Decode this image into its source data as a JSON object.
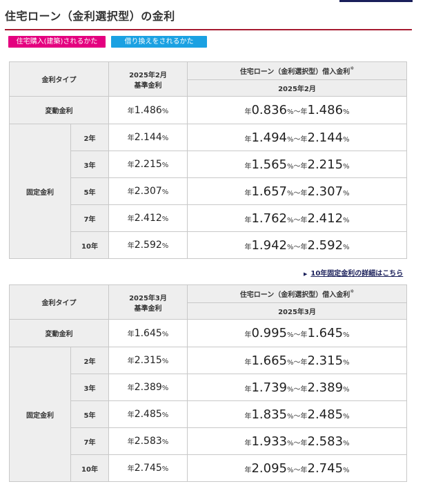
{
  "page_title": "住宅ローン（金利選択型）の金利",
  "tabs": [
    {
      "label": "住宅購入(建築)されるかた",
      "color": "#e4007f"
    },
    {
      "label": "借り換えをされるかた",
      "color": "#1ba1e2"
    }
  ],
  "table1": {
    "header": {
      "type": "金利タイプ",
      "base_period": "2025年2月",
      "base_label": "基準金利",
      "loan_label": "住宅ローン（金利選択型）借入金利",
      "note_mark": "※",
      "loan_period": "2025年2月"
    },
    "variable": {
      "label": "変動金利",
      "base": "1.486",
      "low": "0.836",
      "high": "1.486"
    },
    "fixed_label": "固定金利",
    "fixed": [
      {
        "term": "2年",
        "base": "2.144",
        "low": "1.494",
        "high": "2.144"
      },
      {
        "term": "3年",
        "base": "2.215",
        "low": "1.565",
        "high": "2.215"
      },
      {
        "term": "5年",
        "base": "2.307",
        "low": "1.657",
        "high": "2.307"
      },
      {
        "term": "7年",
        "base": "2.412",
        "low": "1.762",
        "high": "2.412"
      },
      {
        "term": "10年",
        "base": "2.592",
        "low": "1.942",
        "high": "2.592"
      }
    ]
  },
  "detail_link": "10年固定金利の詳細はこちら",
  "table2": {
    "header": {
      "type": "金利タイプ",
      "base_period": "2025年3月",
      "base_label": "基準金利",
      "loan_label": "住宅ローン（金利選択型）借入金利",
      "note_mark": "※",
      "loan_period": "2025年3月"
    },
    "variable": {
      "label": "変動金利",
      "base": "1.645",
      "low": "0.995",
      "high": "1.645"
    },
    "fixed_label": "固定金利",
    "fixed": [
      {
        "term": "2年",
        "base": "2.315",
        "low": "1.665",
        "high": "2.315"
      },
      {
        "term": "3年",
        "base": "2.389",
        "low": "1.739",
        "high": "2.389"
      },
      {
        "term": "5年",
        "base": "2.485",
        "low": "1.835",
        "high": "2.485"
      },
      {
        "term": "7年",
        "base": "2.583",
        "low": "1.933",
        "high": "2.583"
      },
      {
        "term": "10年",
        "base": "2.745",
        "low": "2.095",
        "high": "2.745"
      }
    ]
  },
  "units": {
    "year": "年",
    "percent": "%",
    "tilde": "～"
  }
}
